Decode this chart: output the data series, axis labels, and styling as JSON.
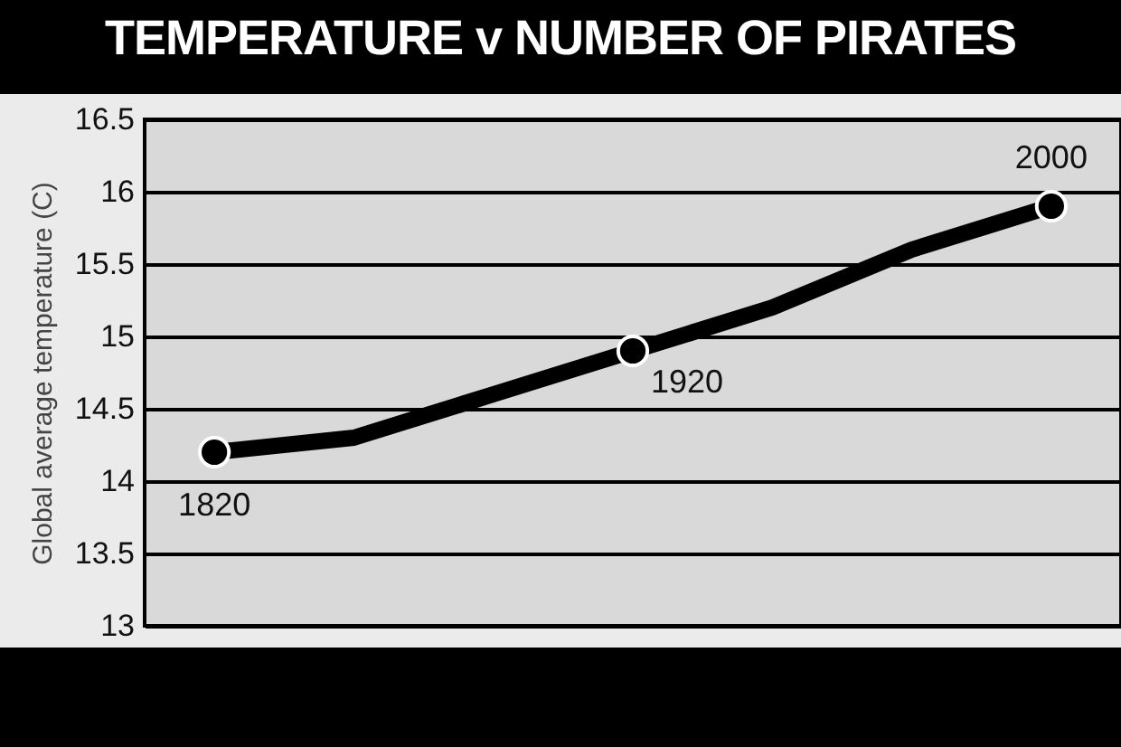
{
  "chart_data": {
    "type": "line",
    "title": "TEMPERATURE v NUMBER OF PIRATES",
    "ylabel": "Global average temperature (C)",
    "categories": [
      null,
      null,
      null,
      null,
      null,
      null,
      null
    ],
    "series": [
      {
        "type": "line",
        "color": "#000000",
        "values": [
          14.2,
          14.3,
          14.6,
          14.9,
          15.2,
          15.6,
          15.9
        ]
      },
      {
        "type": "scatter",
        "marker": "circle",
        "color": "#000000",
        "values": [
          14.2,
          null,
          null,
          14.9,
          null,
          null,
          15.9
        ]
      }
    ],
    "annotations": [
      {
        "text": "1820",
        "y": 14.2
      },
      {
        "text": "1920",
        "y": 14.9
      },
      {
        "text": "2000",
        "y": 15.9
      }
    ],
    "ylim": [
      13,
      16.5
    ],
    "yticks": [
      13,
      13.5,
      14,
      14.5,
      15,
      15.5,
      16,
      16.5
    ],
    "grid": "y",
    "tick_labels": "y"
  }
}
